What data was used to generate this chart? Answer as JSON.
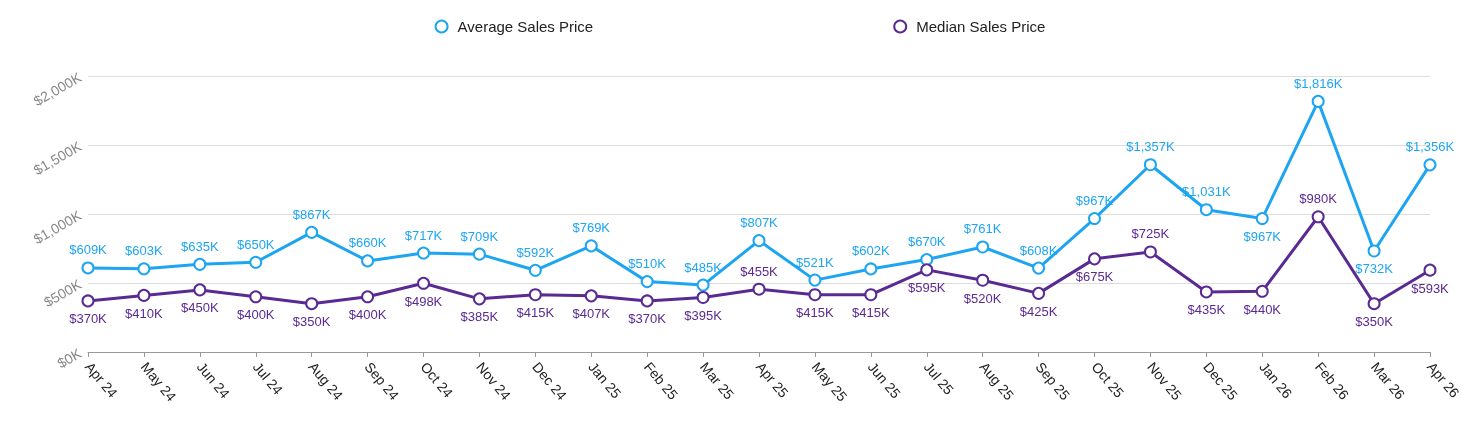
{
  "chart_data": {
    "type": "line",
    "categories": [
      "Apr 24",
      "May 24",
      "Jun 24",
      "Jul 24",
      "Aug 24",
      "Sep 24",
      "Oct 24",
      "Nov 24",
      "Dec 24",
      "Jan 25",
      "Feb 25",
      "Mar 25",
      "Apr 25",
      "May 25",
      "Jun 25",
      "Jul 25",
      "Aug 25",
      "Sep 25",
      "Oct 25",
      "Nov 25",
      "Dec 25",
      "Jan 26",
      "Feb 26",
      "Mar 26",
      "Apr 26"
    ],
    "series": [
      {
        "name": "Average Sales Price",
        "color": "#1ea5f2",
        "values": [
          609,
          603,
          635,
          650,
          867,
          660,
          717,
          709,
          592,
          769,
          510,
          485,
          807,
          521,
          602,
          670,
          761,
          608,
          967,
          1357,
          1031,
          967,
          1816,
          732,
          1356
        ],
        "value_labels": [
          "$609K",
          "$603K",
          "$635K",
          "$650K",
          "$867K",
          "$660K",
          "$717K",
          "$709K",
          "$592K",
          "$769K",
          "$510K",
          "$485K",
          "$807K",
          "$521K",
          "$602K",
          "$670K",
          "$761K",
          "$608K",
          "$967K",
          "$1,357K",
          "$1,031K",
          "$967K",
          "$1,816K",
          "$732K",
          "$1,356K"
        ]
      },
      {
        "name": "Median Sales Price",
        "color": "#5a2a93",
        "values": [
          370,
          410,
          450,
          400,
          350,
          400,
          498,
          385,
          415,
          407,
          370,
          395,
          455,
          415,
          415,
          595,
          520,
          425,
          675,
          725,
          435,
          440,
          980,
          350,
          593
        ],
        "value_labels": [
          "$370K",
          "$410K",
          "$450K",
          "$400K",
          "$350K",
          "$400K",
          "$498K",
          "$385K",
          "$415K",
          "$407K",
          "$370K",
          "$395K",
          "$455K",
          "$415K",
          "$415K",
          "$595K",
          "$520K",
          "$425K",
          "$675K",
          "$725K",
          "$435K",
          "$440K",
          "$980K",
          "$350K",
          "$593K"
        ]
      }
    ],
    "ylim": [
      0,
      2000
    ],
    "yticks": [
      {
        "value": 0,
        "label": "$0K"
      },
      {
        "value": 500,
        "label": "$500K"
      },
      {
        "value": 1000,
        "label": "$1,000K"
      },
      {
        "value": 1500,
        "label": "$1,500K"
      },
      {
        "value": 2000,
        "label": "$2,000K"
      }
    ],
    "grid": "y",
    "legend": "top",
    "marker": "circle",
    "line_style": "solid"
  }
}
